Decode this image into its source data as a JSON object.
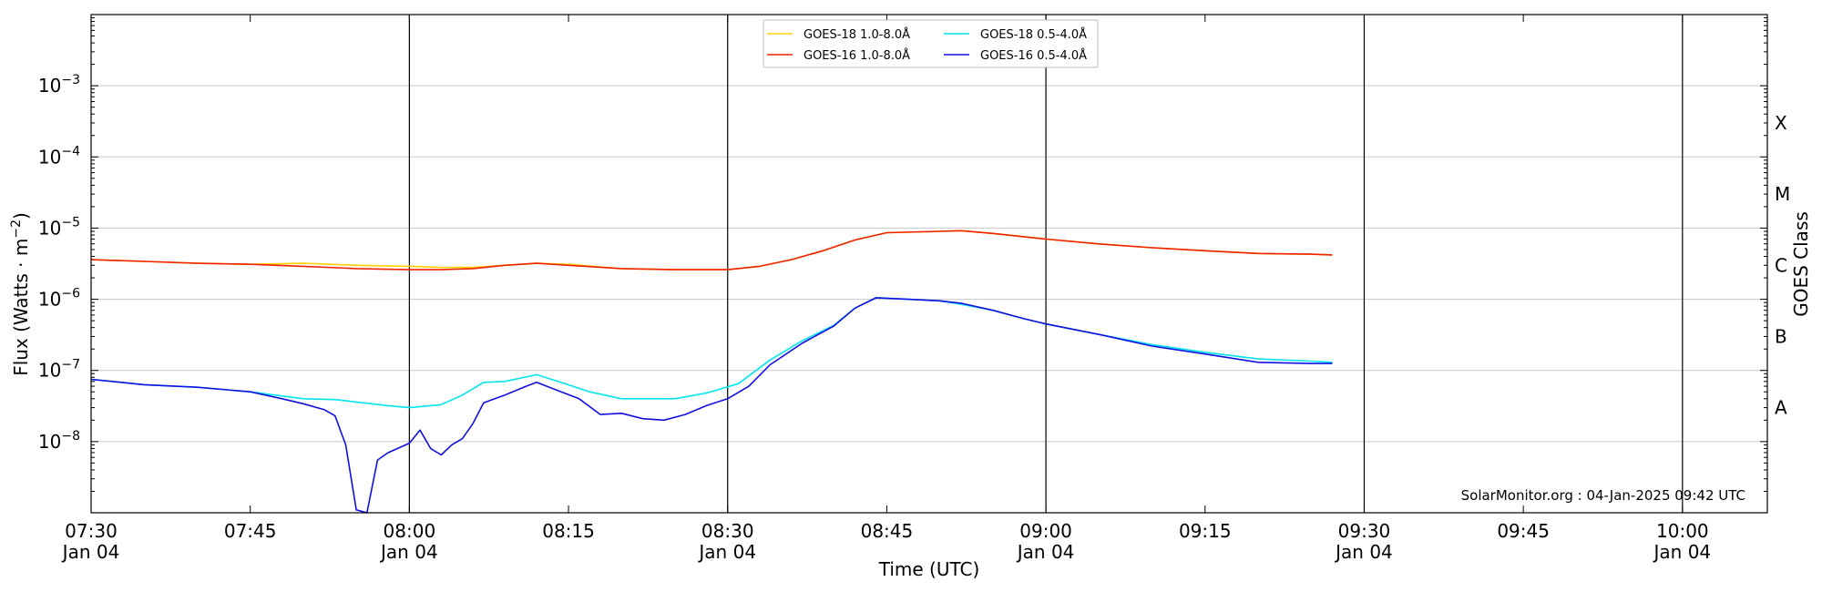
{
  "chart_data": {
    "type": "line",
    "title": "",
    "xlabel": "Time (UTC)",
    "ylabel": "Flux (Watts · m",
    "ylabel_sup": "−2",
    "ylabel_close": ")",
    "right_label": "GOES Class",
    "credit": "SolarMonitor.org : 04-Jan-2025 09:42 UTC",
    "y_scale": "log",
    "ylim": [
      1e-09,
      0.01
    ],
    "xlim": [
      "07:30",
      "10:08"
    ],
    "grid": "horizontal at each decade",
    "legend_position": "top-center",
    "x_ticks": [
      {
        "t": "07:30",
        "line1": "07:30",
        "line2": "Jan 04",
        "vline": false
      },
      {
        "t": "07:45",
        "line1": "07:45",
        "line2": "",
        "vline": false
      },
      {
        "t": "08:00",
        "line1": "08:00",
        "line2": "Jan 04",
        "vline": true
      },
      {
        "t": "08:15",
        "line1": "08:15",
        "line2": "",
        "vline": false
      },
      {
        "t": "08:30",
        "line1": "08:30",
        "line2": "Jan 04",
        "vline": true
      },
      {
        "t": "08:45",
        "line1": "08:45",
        "line2": "",
        "vline": false
      },
      {
        "t": "09:00",
        "line1": "09:00",
        "line2": "Jan 04",
        "vline": true
      },
      {
        "t": "09:15",
        "line1": "09:15",
        "line2": "",
        "vline": false
      },
      {
        "t": "09:30",
        "line1": "09:30",
        "line2": "Jan 04",
        "vline": true
      },
      {
        "t": "09:45",
        "line1": "09:45",
        "line2": "",
        "vline": false
      },
      {
        "t": "10:00",
        "line1": "10:00",
        "line2": "Jan 04",
        "vline": true
      }
    ],
    "y_ticks": [
      {
        "exp": -3,
        "base": "10",
        "sup": "−3"
      },
      {
        "exp": -4,
        "base": "10",
        "sup": "−4"
      },
      {
        "exp": -5,
        "base": "10",
        "sup": "−5"
      },
      {
        "exp": -6,
        "base": "10",
        "sup": "−6"
      },
      {
        "exp": -7,
        "base": "10",
        "sup": "−7"
      },
      {
        "exp": -8,
        "base": "10",
        "sup": "−8"
      }
    ],
    "goes_classes": [
      {
        "label": "X",
        "at": 0.0003
      },
      {
        "label": "M",
        "at": 3e-05
      },
      {
        "label": "C",
        "at": 3e-06
      },
      {
        "label": "B",
        "at": 3e-07
      },
      {
        "label": "A",
        "at": 3e-08
      }
    ],
    "series": [
      {
        "name": "GOES-18 1.0-8.0Å",
        "color": "#ffd000",
        "x": [
          "07:30",
          "07:35",
          "07:40",
          "07:45",
          "07:50",
          "07:55",
          "08:00",
          "08:03",
          "08:06",
          "08:09",
          "08:12",
          "08:15",
          "08:20",
          "08:25",
          "08:30",
          "08:33",
          "08:36",
          "08:39",
          "08:42",
          "08:45",
          "08:50",
          "08:52",
          "08:55",
          "09:00",
          "09:05",
          "09:10",
          "09:15",
          "09:20",
          "09:25",
          "09:27"
        ],
        "values": [
          3.6e-06,
          3.4e-06,
          3.2e-06,
          3.1e-06,
          3.2e-06,
          3e-06,
          2.9e-06,
          2.8e-06,
          2.8e-06,
          3e-06,
          3.2e-06,
          3.1e-06,
          2.7e-06,
          2.6e-06,
          2.6e-06,
          2.9e-06,
          3.6e-06,
          4.8e-06,
          6.8e-06,
          8.6e-06,
          9e-06,
          9.2e-06,
          8.4e-06,
          7e-06,
          6e-06,
          5.3e-06,
          4.8e-06,
          4.4e-06,
          4.3e-06,
          4.2e-06
        ]
      },
      {
        "name": "GOES-16 1.0-8.0Å",
        "color": "#ee2200",
        "x": [
          "07:30",
          "07:35",
          "07:40",
          "07:45",
          "07:50",
          "07:55",
          "08:00",
          "08:03",
          "08:06",
          "08:09",
          "08:12",
          "08:15",
          "08:20",
          "08:25",
          "08:30",
          "08:33",
          "08:36",
          "08:39",
          "08:42",
          "08:45",
          "08:50",
          "08:52",
          "08:55",
          "09:00",
          "09:05",
          "09:10",
          "09:15",
          "09:20",
          "09:25",
          "09:27"
        ],
        "values": [
          3.6e-06,
          3.4e-06,
          3.2e-06,
          3.1e-06,
          2.9e-06,
          2.7e-06,
          2.6e-06,
          2.6e-06,
          2.7e-06,
          3e-06,
          3.2e-06,
          3e-06,
          2.7e-06,
          2.6e-06,
          2.6e-06,
          2.9e-06,
          3.6e-06,
          4.8e-06,
          6.8e-06,
          8.6e-06,
          9e-06,
          9.2e-06,
          8.4e-06,
          7e-06,
          6e-06,
          5.3e-06,
          4.8e-06,
          4.4e-06,
          4.3e-06,
          4.2e-06
        ]
      },
      {
        "name": "GOES-18 0.5-4.0Å",
        "color": "#00e5ee",
        "x": [
          "07:30",
          "07:35",
          "07:40",
          "07:45",
          "07:50",
          "07:53",
          "07:55",
          "07:58",
          "08:00",
          "08:03",
          "08:05",
          "08:07",
          "08:09",
          "08:12",
          "08:14",
          "08:17",
          "08:20",
          "08:25",
          "08:28",
          "08:31",
          "08:34",
          "08:37",
          "08:40",
          "08:42",
          "08:44",
          "08:47",
          "08:50",
          "08:52",
          "08:55",
          "08:58",
          "09:00",
          "09:05",
          "09:10",
          "09:15",
          "09:20",
          "09:25",
          "09:27"
        ],
        "values": [
          7.5e-08,
          6.3e-08,
          5.8e-08,
          5e-08,
          4e-08,
          3.9e-08,
          3.6e-08,
          3.2e-08,
          3e-08,
          3.3e-08,
          4.5e-08,
          6.8e-08,
          7e-08,
          8.7e-08,
          7e-08,
          5e-08,
          4e-08,
          4e-08,
          4.8e-08,
          6.5e-08,
          1.4e-07,
          2.6e-07,
          4.3e-07,
          7.5e-07,
          1.05e-06,
          1e-06,
          9.5e-07,
          8.5e-07,
          7e-07,
          5.3e-07,
          4.5e-07,
          3.2e-07,
          2.3e-07,
          1.8e-07,
          1.45e-07,
          1.35e-07,
          1.3e-07
        ]
      },
      {
        "name": "GOES-16 0.5-4.0Å",
        "color": "#1010e0",
        "x": [
          "07:30",
          "07:35",
          "07:40",
          "07:45",
          "07:48",
          "07:50",
          "07:52",
          "07:53",
          "07:54",
          "07:55",
          "07:56",
          "07:57",
          "07:58",
          "08:00",
          "08:01",
          "08:02",
          "08:03",
          "08:04",
          "08:05",
          "08:06",
          "08:07",
          "08:09",
          "08:11",
          "08:12",
          "08:14",
          "08:16",
          "08:18",
          "08:20",
          "08:22",
          "08:24",
          "08:26",
          "08:28",
          "08:30",
          "08:32",
          "08:34",
          "08:37",
          "08:40",
          "08:42",
          "08:44",
          "08:47",
          "08:50",
          "08:52",
          "08:55",
          "08:58",
          "09:00",
          "09:05",
          "09:10",
          "09:15",
          "09:20",
          "09:25",
          "09:27"
        ],
        "values": [
          7.5e-08,
          6.3e-08,
          5.8e-08,
          5e-08,
          4e-08,
          3.4e-08,
          2.8e-08,
          2.3e-08,
          9e-09,
          1.1e-09,
          1e-09,
          5.5e-09,
          7e-09,
          9.5e-09,
          1.45e-08,
          8e-09,
          6.5e-09,
          9e-09,
          1.1e-08,
          1.8e-08,
          3.5e-08,
          4.5e-08,
          6e-08,
          6.8e-08,
          5.2e-08,
          4e-08,
          2.4e-08,
          2.5e-08,
          2.1e-08,
          2e-08,
          2.4e-08,
          3.2e-08,
          4e-08,
          6e-08,
          1.2e-07,
          2.4e-07,
          4.2e-07,
          7.5e-07,
          1.05e-06,
          1e-06,
          9.5e-07,
          8.8e-07,
          7e-07,
          5.3e-07,
          4.5e-07,
          3.2e-07,
          2.2e-07,
          1.7e-07,
          1.3e-07,
          1.25e-07,
          1.25e-07
        ]
      }
    ]
  }
}
